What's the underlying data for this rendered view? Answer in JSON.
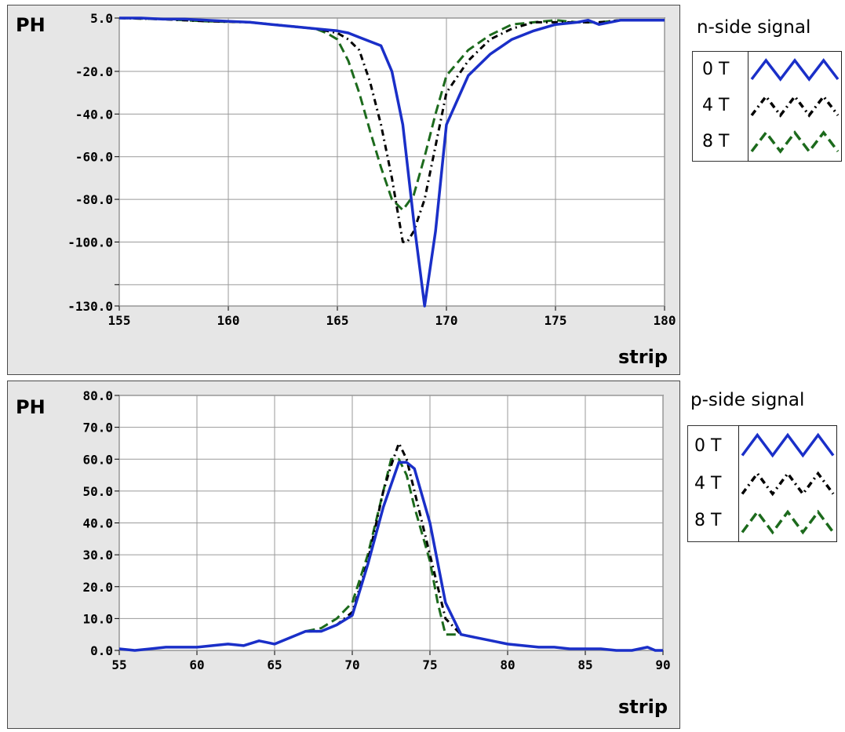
{
  "chart_data": [
    {
      "type": "line",
      "ylabel": "PH",
      "xlabel": "strip",
      "legend_title": "n-side signal",
      "legend_placement": "right",
      "grid": true,
      "xlim": [
        155,
        180
      ],
      "ylim": [
        -130,
        5
      ],
      "xticks": [
        155,
        160,
        165,
        170,
        175,
        180
      ],
      "xtick_labels": [
        "155",
        "160",
        "165",
        "170",
        "175",
        "180"
      ],
      "yticks": [
        5,
        -20,
        -40,
        -60,
        -80,
        -100,
        -130
      ],
      "ytick_labels": [
        "5.0",
        "-20.0",
        "-40.0",
        "-60.0",
        "-80.0",
        "-100.0",
        "-130.0"
      ],
      "ygrid_extra": [
        -120
      ],
      "series": [
        {
          "name": "0 T",
          "color": "#1a2fc8",
          "style": "solid",
          "x": [
            155,
            156,
            157,
            158,
            159,
            160,
            161,
            162,
            163,
            164,
            165,
            165.5,
            166,
            166.5,
            167,
            167.5,
            168,
            168.5,
            169,
            169.5,
            170,
            171,
            172,
            173,
            174,
            175,
            176,
            176.5,
            177,
            178,
            179,
            180
          ],
          "y": [
            5,
            5,
            4.5,
            4.5,
            4,
            3.5,
            3,
            2,
            1,
            0,
            -1,
            -2,
            -4,
            -6,
            -8,
            -20,
            -45,
            -90,
            -130,
            -95,
            -45,
            -22,
            -12,
            -5,
            -1,
            2,
            3,
            4,
            2,
            4,
            4,
            4
          ]
        },
        {
          "name": "4 T",
          "color": "#000000",
          "style": "dashdot",
          "x": [
            155,
            157,
            159,
            161,
            163,
            164,
            165,
            165.5,
            166,
            166.5,
            167,
            167.5,
            168,
            168.2,
            168.5,
            169,
            169.5,
            170,
            171,
            172,
            173,
            174,
            175,
            176,
            177,
            178,
            180
          ],
          "y": [
            5,
            4.5,
            3.5,
            3,
            1,
            0,
            -2,
            -5,
            -10,
            -25,
            -45,
            -70,
            -100,
            -100,
            -95,
            -80,
            -55,
            -30,
            -15,
            -5,
            0,
            3,
            3,
            3,
            3,
            4,
            4
          ]
        },
        {
          "name": "8 T",
          "color": "#1c6a1c",
          "style": "dashed",
          "x": [
            155,
            157,
            159,
            161,
            163,
            164,
            164.5,
            165,
            165.5,
            166,
            166.5,
            167,
            167.5,
            168,
            168.5,
            169,
            169.5,
            170,
            171,
            172,
            173,
            174,
            175,
            176,
            177,
            178,
            180
          ],
          "y": [
            5,
            4.5,
            3.5,
            3,
            1,
            0,
            -2,
            -5,
            -15,
            -30,
            -48,
            -65,
            -80,
            -85,
            -78,
            -60,
            -40,
            -22,
            -10,
            -3,
            2,
            3,
            4,
            3,
            3,
            4,
            4
          ]
        }
      ]
    },
    {
      "type": "line",
      "ylabel": "PH",
      "xlabel": "strip",
      "legend_title": "p-side signal",
      "legend_placement": "right",
      "grid": true,
      "xlim": [
        55,
        90
      ],
      "ylim": [
        0,
        80
      ],
      "xticks": [
        55,
        60,
        65,
        70,
        75,
        80,
        85,
        90
      ],
      "xtick_labels": [
        "55",
        "60",
        "65",
        "70",
        "75",
        "80",
        "85",
        "90"
      ],
      "yticks": [
        0,
        10,
        20,
        30,
        40,
        50,
        60,
        70,
        80
      ],
      "ytick_labels": [
        "0.0",
        "10.0",
        "20.0",
        "30.0",
        "40.0",
        "50.0",
        "60.0",
        "70.0",
        "80.0"
      ],
      "series": [
        {
          "name": "0 T",
          "color": "#1a2fc8",
          "style": "solid",
          "x": [
            55,
            56,
            57,
            58,
            59,
            60,
            61,
            62,
            63,
            64,
            64.5,
            65,
            66,
            67,
            67.5,
            68,
            69,
            70,
            71,
            72,
            73,
            73.5,
            74,
            75,
            76,
            77,
            78,
            79,
            80,
            81,
            82,
            83,
            84,
            85,
            86,
            87,
            88,
            89,
            89.5,
            90
          ],
          "y": [
            0.5,
            0,
            0.5,
            1,
            1,
            1,
            1.5,
            2,
            1.5,
            3,
            2.5,
            2,
            4,
            6,
            6,
            6,
            8,
            11,
            27,
            45,
            59,
            59,
            57,
            40,
            15,
            5,
            4,
            3,
            2,
            1.5,
            1,
            1,
            0.5,
            0.5,
            0.5,
            0,
            0,
            1,
            0,
            0
          ]
        },
        {
          "name": "4 T",
          "color": "#000000",
          "style": "dashdot",
          "x": [
            67,
            68,
            69,
            70,
            71,
            72,
            72.5,
            73,
            73.5,
            74,
            75,
            76,
            77,
            78
          ],
          "y": [
            6,
            6,
            8,
            12,
            28,
            50,
            58,
            65,
            60,
            50,
            30,
            10,
            5,
            4
          ]
        },
        {
          "name": "8 T",
          "color": "#1c6a1c",
          "style": "dashed",
          "x": [
            67,
            68,
            69,
            70,
            71,
            72,
            72.5,
            73,
            73.5,
            74,
            75,
            75.5,
            76,
            77,
            78
          ],
          "y": [
            6,
            7,
            10,
            15,
            30,
            50,
            60,
            60,
            55,
            45,
            28,
            15,
            5,
            5,
            4
          ]
        }
      ]
    }
  ]
}
